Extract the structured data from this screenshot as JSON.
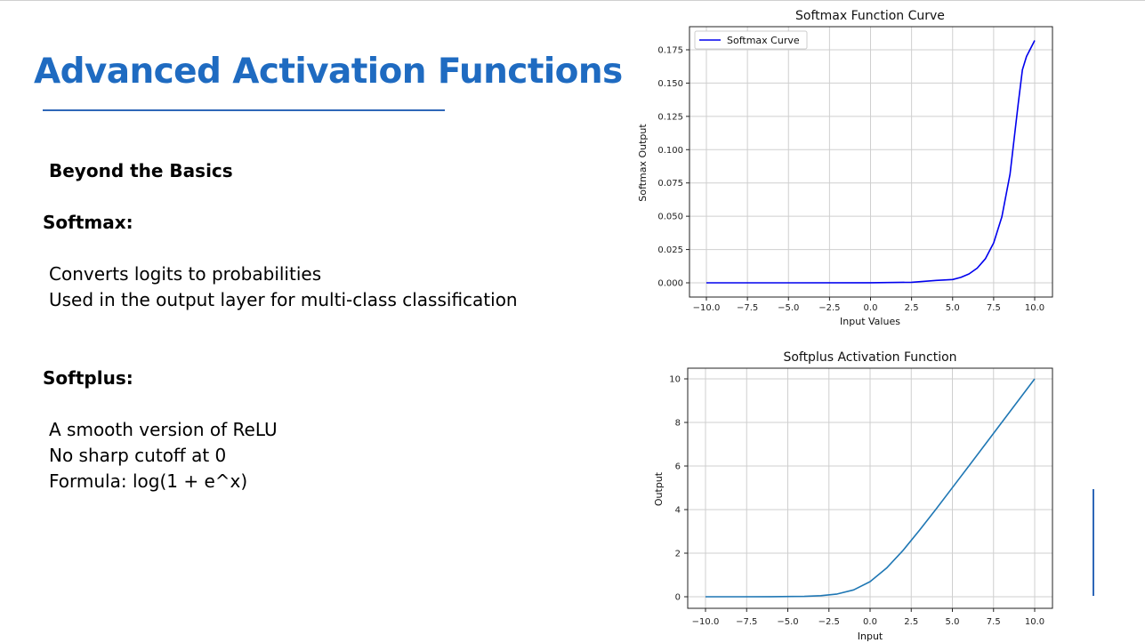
{
  "slide": {
    "title": "Advanced Activation Functions",
    "subtitle": "Beyond the Basics",
    "sections": [
      {
        "heading": "Softmax:",
        "bullets": [
          "Converts logits to probabilities",
          "Used in the output layer for multi-class classification"
        ]
      },
      {
        "heading": "Softplus:",
        "bullets": [
          "A smooth version of ReLU",
          "No sharp cutoff at 0",
          "Formula: log(1 + e^x)"
        ]
      }
    ]
  },
  "chart_data": [
    {
      "type": "line",
      "title": "Softmax Function Curve",
      "xlabel": "Input Values",
      "ylabel": "Softmax Output",
      "xlim": [
        -10,
        10
      ],
      "ylim": [
        -0.007,
        0.185
      ],
      "xticks": [
        "−10.0",
        "−7.5",
        "−5.0",
        "−2.5",
        "0.0",
        "2.5",
        "5.0",
        "7.5",
        "10.0"
      ],
      "yticks": [
        "0.000",
        "0.025",
        "0.050",
        "0.075",
        "0.100",
        "0.125",
        "0.150",
        "0.175"
      ],
      "grid": true,
      "legend": "top-left",
      "series": [
        {
          "name": "Softmax Curve",
          "color": "#0000ee",
          "x": [
            -10,
            -5,
            0,
            2.5,
            4,
            5,
            5.5,
            6,
            6.5,
            7,
            7.5,
            8,
            8.5,
            9,
            9.25,
            9.5,
            9.75,
            10
          ],
          "y": [
            0,
            0,
            0.0001,
            0.0004,
            0.0018,
            0.0025,
            0.0041,
            0.0067,
            0.011,
            0.0182,
            0.03,
            0.0495,
            0.0816,
            0.1345,
            0.16,
            0.17,
            0.176,
            0.182
          ]
        }
      ]
    },
    {
      "type": "line",
      "title": "Softplus Activation Function",
      "xlabel": "Input",
      "ylabel": "Output",
      "xlim": [
        -11,
        11
      ],
      "ylim": [
        -0.5,
        10.5
      ],
      "xticks": [
        "−10.0",
        "−7.5",
        "−5.0",
        "−2.5",
        "0.0",
        "2.5",
        "5.0",
        "7.5",
        "10.0"
      ],
      "yticks": [
        "0",
        "2",
        "4",
        "6",
        "8",
        "10"
      ],
      "grid": true,
      "series": [
        {
          "color": "#1f77b4",
          "x": [
            -10,
            -8,
            -6,
            -4,
            -3,
            -2,
            -1,
            0,
            1,
            2,
            3,
            4,
            5,
            6,
            7,
            8,
            9,
            10
          ],
          "y": [
            5e-05,
            0.0003,
            0.0025,
            0.018,
            0.049,
            0.127,
            0.313,
            0.693,
            1.313,
            2.127,
            3.049,
            4.018,
            5.007,
            6.002,
            7.001,
            8.0003,
            9.0001,
            10.00005
          ]
        }
      ]
    }
  ]
}
